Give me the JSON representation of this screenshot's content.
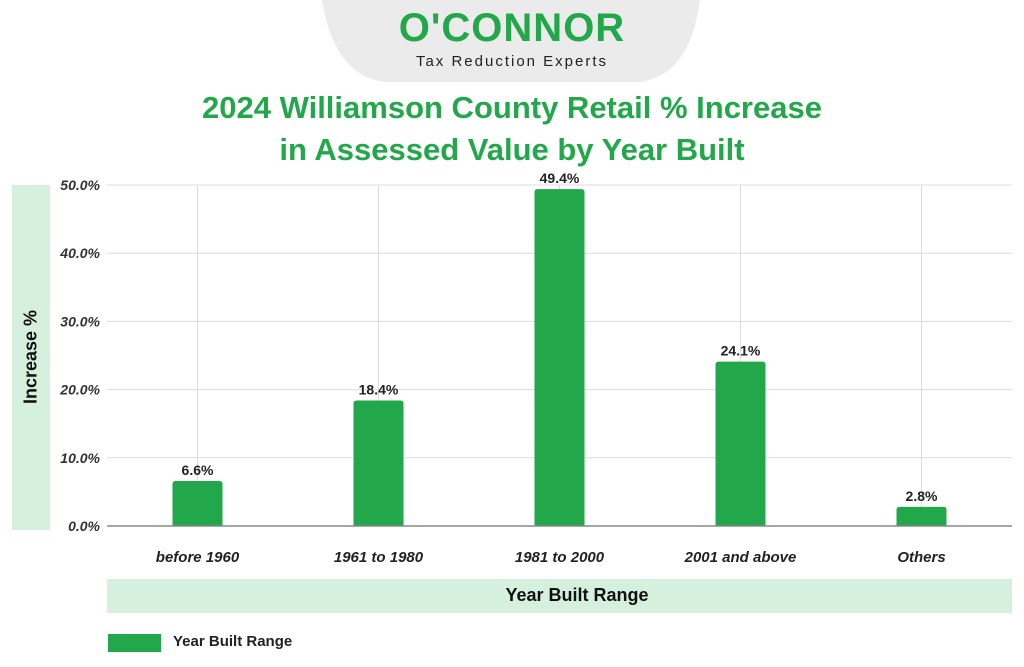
{
  "brand": {
    "name": "O'CONNOR",
    "tagline": "Tax Reduction Experts"
  },
  "colors": {
    "accent": "#22a84a",
    "panel": "#d5f0dc",
    "logo_tab": "#ebebeb"
  },
  "chart_data": {
    "type": "bar",
    "title": [
      "2024 Williamson County Retail % Increase",
      "in Assessed Value by Year Built"
    ],
    "xlabel": "Year Built Range",
    "ylabel": "Increase %",
    "categories": [
      "before 1960",
      "1961 to 1980",
      "1981 to 2000",
      "2001 and above",
      "Others"
    ],
    "series": [
      {
        "name": "Year Built Range",
        "values": [
          6.6,
          18.4,
          49.4,
          24.1,
          2.8
        ],
        "data_labels": [
          "6.6%",
          "18.4%",
          "49.4%",
          "24.1%",
          "2.8%"
        ]
      }
    ],
    "ylim": [
      0,
      50
    ],
    "yticks": [
      "0.0%",
      "10.0%",
      "20.0%",
      "30.0%",
      "40.0%",
      "50.0%"
    ],
    "grid": true,
    "legend_position": "bottom-left"
  }
}
